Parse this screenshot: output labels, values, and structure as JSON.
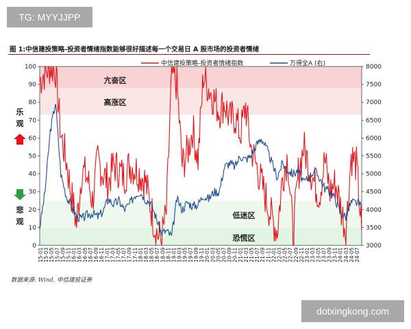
{
  "watermarks": {
    "top_left": "TG: MYYJJPP",
    "bottom_right": "dotxingkong.com"
  },
  "figure": {
    "title": "图 1:中信建投策略-投资者情绪指数能够很好描述每一个交易日 A 股市场的投资者情绪",
    "source": "数据来源: Wind, 中信建投证券",
    "left_labels": {
      "optimistic_1": "乐",
      "optimistic_2": "观",
      "pessimistic_1": "悲",
      "pessimistic_2": "观"
    },
    "colors": {
      "red_series": "#e5141b",
      "blue_series": "#1f4e8c",
      "top_band": "#f9d3d3",
      "top_band_light": "#fbe6e6",
      "bottom_band": "#e2f4e4",
      "bottom_band_light": "#eef8ef",
      "up_arrow": "#e5141b",
      "down_arrow": "#2e9e3e"
    }
  },
  "chart_data": {
    "type": "line",
    "title": "",
    "xlabel": "",
    "ylabel": "",
    "left_ylim": [
      0,
      100
    ],
    "left_yticks": [
      "0",
      "10",
      "20",
      "30",
      "40",
      "50",
      "60",
      "70",
      "80",
      "90",
      "100"
    ],
    "right_ylim": [
      3000,
      8000
    ],
    "right_yticks": [
      "3000",
      "3500",
      "4000",
      "4500",
      "5000",
      "5500",
      "6000",
      "6500",
      "7000",
      "7500",
      "8000"
    ],
    "x_labels": [
      "15-01",
      "15-03",
      "15-05",
      "15-07",
      "15-09",
      "15-11",
      "16-01",
      "16-03",
      "16-05",
      "16-07",
      "16-09",
      "16-11",
      "17-01",
      "17-03",
      "17-05",
      "17-07",
      "17-09",
      "17-11",
      "18-01",
      "18-03",
      "18-05",
      "18-07",
      "18-09",
      "18-11",
      "19-01",
      "19-03",
      "19-05",
      "19-07",
      "19-09",
      "19-11",
      "20-01",
      "20-03",
      "20-05",
      "20-07",
      "20-09",
      "20-11",
      "21-01",
      "21-03",
      "21-05",
      "21-07",
      "21-09",
      "21-11",
      "22-01",
      "22-03",
      "22-05",
      "22-07",
      "22-09",
      "22-11",
      "23-01",
      "23-03",
      "23-05",
      "23-07",
      "23-09",
      "23-11",
      "24-01",
      "24-03",
      "24-05",
      "24-07"
    ],
    "legend_placement": "top-right",
    "zones": [
      {
        "name": "亢奋区",
        "from": 88,
        "to": 100
      },
      {
        "name": "高涨区",
        "from": 73,
        "to": 88
      },
      {
        "name": "低迷区",
        "from": 10,
        "to": 25
      },
      {
        "name": "恐慌区",
        "from": 0,
        "to": 10
      }
    ],
    "series": [
      {
        "name": "中信建投策略-投资者情绪指数",
        "axis": "left",
        "values": [
          92,
          97,
          100,
          98,
          62,
          48,
          28,
          12,
          42,
          38,
          25,
          48,
          40,
          35,
          45,
          42,
          38,
          45,
          43,
          40,
          36,
          22,
          8,
          3,
          18,
          96,
          90,
          45,
          52,
          65,
          48,
          95,
          88,
          82,
          75,
          80,
          70,
          72,
          62,
          78,
          55,
          45,
          35,
          25,
          15,
          8,
          38,
          50,
          5,
          40,
          55,
          45,
          35,
          28,
          48,
          30,
          35,
          22,
          8,
          50,
          45,
          8
        ]
      },
      {
        "name": "万得全A (右)",
        "axis": "right",
        "values": [
          3500,
          4500,
          6200,
          7000,
          5000,
          4400,
          4100,
          3800,
          3750,
          3850,
          3900,
          3800,
          3950,
          4300,
          4150,
          4250,
          4000,
          4150,
          4400,
          4500,
          4300,
          4200,
          3800,
          3350,
          3400,
          3250,
          4300,
          4000,
          4200,
          4100,
          4150,
          4400,
          4300,
          4500,
          4500,
          5200,
          5300,
          5200,
          5500,
          5400,
          5500,
          5800,
          6000,
          5700,
          5300,
          4900,
          5300,
          5100,
          5000,
          5100,
          4750,
          4900,
          5100,
          4900,
          4600,
          4500,
          4300,
          3900,
          3800,
          4200,
          4200,
          4100
        ]
      }
    ]
  }
}
